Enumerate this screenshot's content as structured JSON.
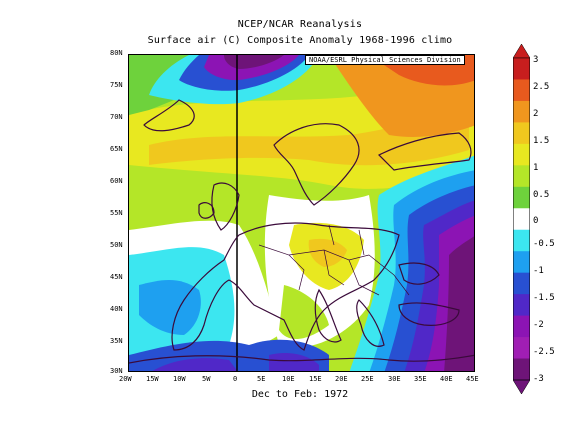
{
  "title_line1": "NCEP/NCAR Reanalysis",
  "title_line2": "Surface air (C) Composite Anomaly 1968-1996 climo",
  "credit": "NOAA/ESRL Physical Sciences Division",
  "x_caption": "Dec to Feb: 1972",
  "lat_labels": [
    "80N",
    "75N",
    "70N",
    "65N",
    "60N",
    "55N",
    "50N",
    "45N",
    "40N",
    "35N",
    "30N"
  ],
  "lon_labels": [
    "20W",
    "15W",
    "10W",
    "5W",
    "0",
    "5E",
    "10E",
    "15E",
    "20E",
    "25E",
    "30E",
    "35E",
    "40E",
    "45E"
  ],
  "colorbar": {
    "labels": [
      "3",
      "2.5",
      "2",
      "1.5",
      "1",
      "0.5",
      "0",
      "-0.5",
      "-1",
      "-1.5",
      "-2",
      "-2.5",
      "-3"
    ],
    "colors": [
      "#c81e1e",
      "#e85a1e",
      "#f0961e",
      "#f0c81e",
      "#e8e820",
      "#b4e628",
      "#6ed23c",
      "#ffffff",
      "#3ce6f0",
      "#1ea0f0",
      "#2850d2",
      "#5028c8",
      "#8c14b4",
      "#a01eb4",
      "#6e1478"
    ]
  }
}
